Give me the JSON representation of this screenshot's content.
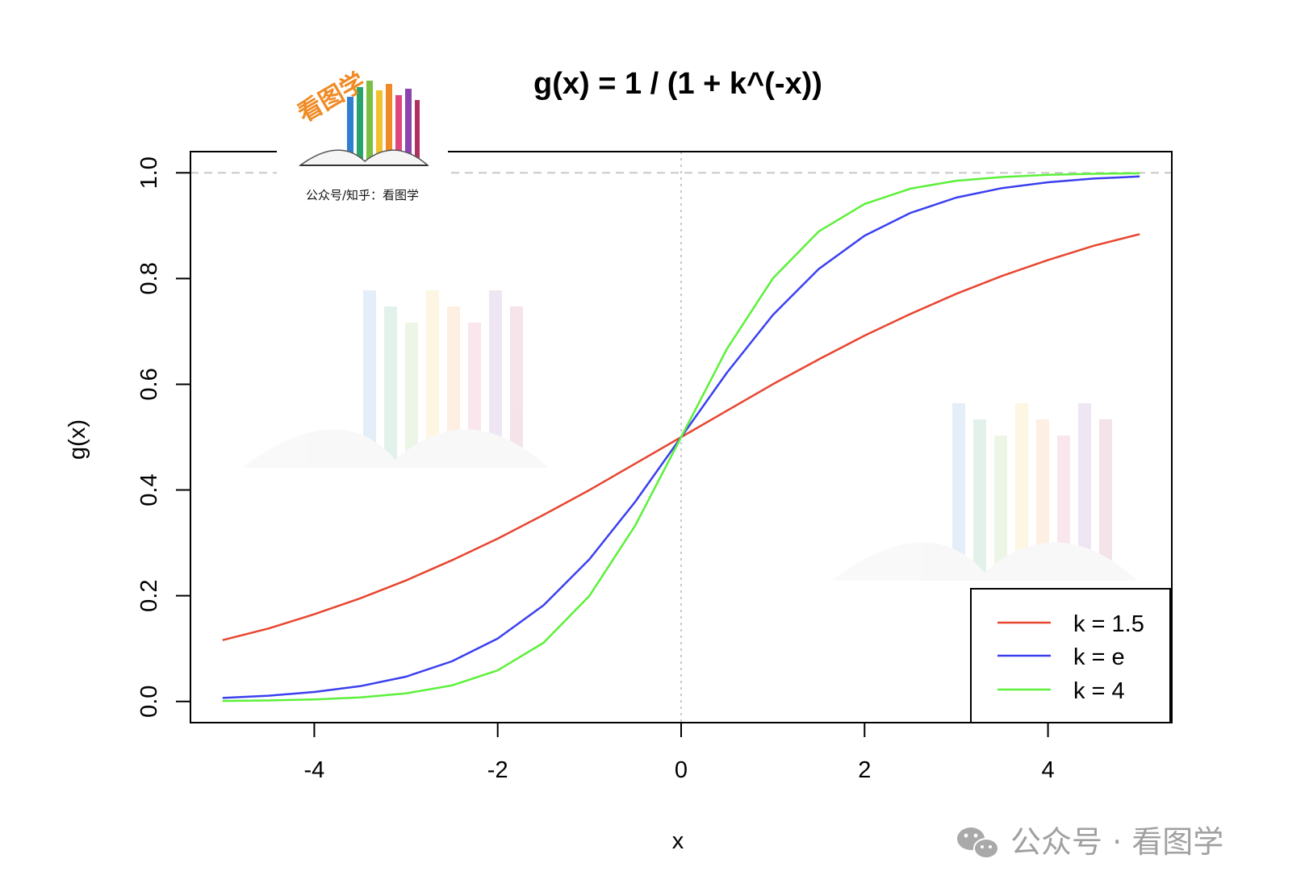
{
  "chart_data": {
    "type": "line",
    "title": "g(x) = 1 / (1 + k^(-x))",
    "xlabel": "x",
    "ylabel": "g(x)",
    "xlim": [
      -5.35,
      5.35
    ],
    "ylim": [
      -0.04,
      1.04
    ],
    "xticks": [
      -4,
      -2,
      0,
      2,
      4
    ],
    "xtick_labels": [
      "-4",
      "-2",
      "0",
      "2",
      "4"
    ],
    "yticks": [
      0.0,
      0.2,
      0.4,
      0.6,
      0.8,
      1.0
    ],
    "ytick_labels": [
      "0.0",
      "0.2",
      "0.4",
      "0.6",
      "0.8",
      "1.0"
    ],
    "reference_lines": [
      {
        "orientation": "horizontal",
        "value": 1.0,
        "style": "dashed",
        "color": "#c8c8c8"
      },
      {
        "orientation": "vertical",
        "value": 0,
        "style": "dotted",
        "color": "#c8c8c8"
      }
    ],
    "legend_position": "bottom-right",
    "grid": false,
    "series": [
      {
        "name": "k = 1.5",
        "color": "#e8452f",
        "x": [
          -5,
          -4.5,
          -4,
          -3.5,
          -3,
          -2.5,
          -2,
          -1.5,
          -1,
          -0.5,
          0,
          0.5,
          1,
          1.5,
          2,
          2.5,
          3,
          3.5,
          4,
          4.5,
          5
        ],
        "y": [
          0.116,
          0.138,
          0.165,
          0.195,
          0.229,
          0.267,
          0.308,
          0.353,
          0.4,
          0.45,
          0.5,
          0.55,
          0.6,
          0.647,
          0.692,
          0.733,
          0.771,
          0.805,
          0.835,
          0.862,
          0.884
        ]
      },
      {
        "name": "k = e",
        "color": "#3a3ff0",
        "x": [
          -5,
          -4.5,
          -4,
          -3.5,
          -3,
          -2.5,
          -2,
          -1.5,
          -1,
          -0.5,
          0,
          0.5,
          1,
          1.5,
          2,
          2.5,
          3,
          3.5,
          4,
          4.5,
          5
        ],
        "y": [
          0.0067,
          0.011,
          0.018,
          0.029,
          0.047,
          0.076,
          0.119,
          0.182,
          0.269,
          0.378,
          0.5,
          0.622,
          0.731,
          0.818,
          0.881,
          0.924,
          0.953,
          0.971,
          0.982,
          0.989,
          0.993
        ]
      },
      {
        "name": "k = 4",
        "color": "#5cf03a",
        "x": [
          -5,
          -4.5,
          -4,
          -3.5,
          -3,
          -2.5,
          -2,
          -1.5,
          -1,
          -0.5,
          0,
          0.5,
          1,
          1.5,
          2,
          2.5,
          3,
          3.5,
          4,
          4.5,
          5
        ],
        "y": [
          0.001,
          0.002,
          0.0039,
          0.0078,
          0.0154,
          0.0303,
          0.0588,
          0.111,
          0.2,
          0.333,
          0.5,
          0.667,
          0.8,
          0.889,
          0.941,
          0.97,
          0.985,
          0.992,
          0.996,
          0.998,
          0.999
        ]
      }
    ]
  },
  "logo": {
    "name": "看图学",
    "caption": "公众号/知乎：看图学"
  },
  "footer_watermark": {
    "icon": "wechat-icon",
    "text": "公众号 · 看图学"
  }
}
